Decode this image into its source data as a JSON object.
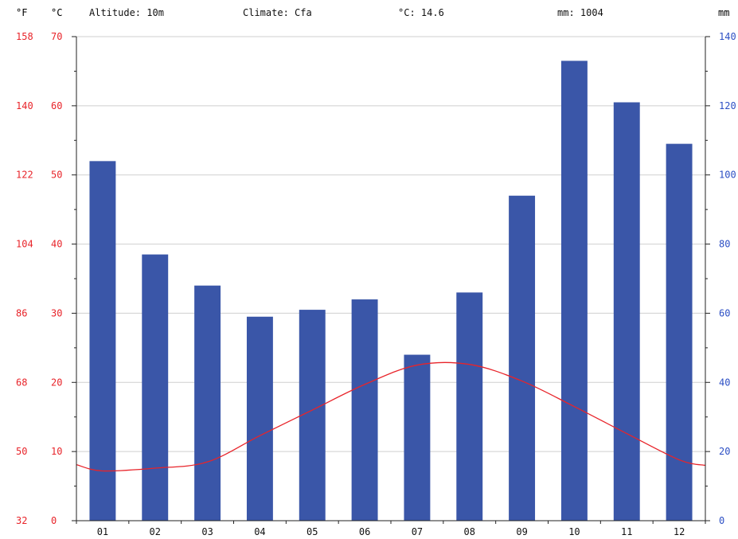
{
  "header": {
    "altitude": "Altitude: 10m",
    "climate": "Climate: Cfa",
    "avg_temp": "°C: 14.6",
    "precip_total": "mm: 1004"
  },
  "colors": {
    "temp": "#e8242a",
    "precip_bar": "#3a56a8",
    "precip_axis": "#2c4fc4",
    "grid": "#cfcfcf",
    "axis": "#222222"
  },
  "chart_data": {
    "type": "bar",
    "categories": [
      "01",
      "02",
      "03",
      "04",
      "05",
      "06",
      "07",
      "08",
      "09",
      "10",
      "11",
      "12"
    ],
    "series": [
      {
        "kind": "bar",
        "axis": "right",
        "values": [
          104,
          77,
          68,
          59,
          61,
          64,
          48,
          66,
          94,
          133,
          121,
          109
        ]
      },
      {
        "kind": "line",
        "axis": "left",
        "values": [
          7.2,
          7.6,
          8.5,
          12.3,
          16.0,
          19.7,
          22.5,
          22.6,
          20.2,
          16.5,
          12.6,
          8.8
        ]
      }
    ],
    "axes": {
      "left_f": {
        "label": "°F",
        "ticks": [
          "32",
          "50",
          "68",
          "86",
          "104",
          "122",
          "140",
          "158"
        ]
      },
      "left_c": {
        "label": "°C",
        "ticks": [
          "0",
          "10",
          "20",
          "30",
          "40",
          "50",
          "60",
          "70"
        ],
        "range": [
          0,
          70
        ]
      },
      "right_mm": {
        "label": "mm",
        "ticks": [
          "0",
          "20",
          "40",
          "60",
          "80",
          "100",
          "120",
          "140"
        ],
        "range": [
          0,
          140
        ]
      }
    },
    "grid": true
  }
}
